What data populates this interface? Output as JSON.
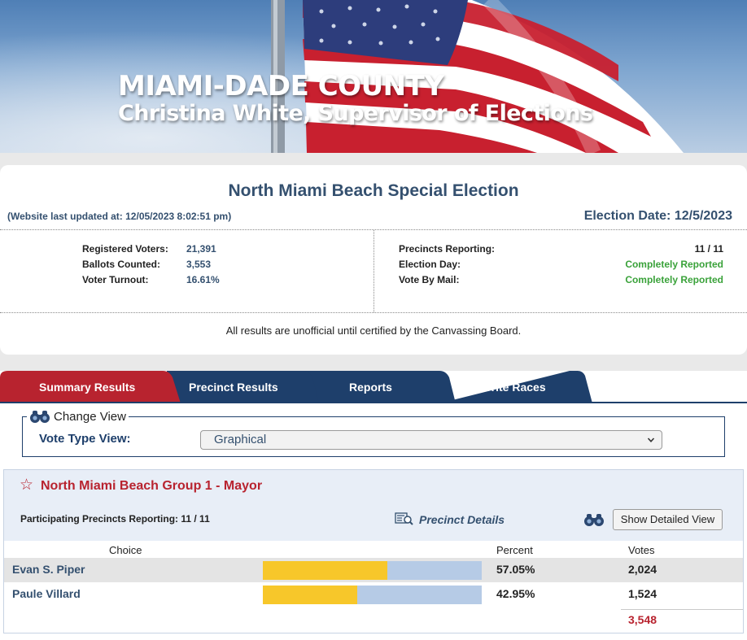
{
  "banner": {
    "county": "MIAMI-DADE COUNTY",
    "supervisor": "Christina White, Supervisor of Elections"
  },
  "election": {
    "title": "North Miami Beach Special Election",
    "last_updated": "(Website last updated at: 12/05/2023 8:02:51 pm)",
    "election_date": "Election Date: 12/5/2023",
    "stats_left": [
      {
        "label": "Registered Voters:",
        "value": "21,391"
      },
      {
        "label": "Ballots Counted:",
        "value": "3,553"
      },
      {
        "label": "Voter Turnout:",
        "value": "16.61%"
      }
    ],
    "stats_right": [
      {
        "label": "Precincts Reporting:",
        "value": "11 / 11"
      },
      {
        "label": "Election Day:",
        "value": "Completely Reported"
      },
      {
        "label": "Vote By Mail:",
        "value": "Completely Reported"
      }
    ],
    "disclaimer": "All results are unofficial until certified by the Canvassing Board."
  },
  "tabs": [
    {
      "label": "Summary Results",
      "active": true
    },
    {
      "label": "Precinct Results",
      "active": false
    },
    {
      "label": "Reports",
      "active": false
    },
    {
      "label": "Favorite Races",
      "active": false
    }
  ],
  "change_view": {
    "legend": "Change View",
    "vote_type_label": "Vote Type View:",
    "selected": "Graphical"
  },
  "race": {
    "title": "North Miami Beach Group 1 - Mayor",
    "precincts": "Participating Precincts Reporting: 11 / 11",
    "precinct_details": "Precinct Details",
    "show_detailed_view": "Show Detailed View",
    "headers": {
      "choice": "Choice",
      "percent": "Percent",
      "votes": "Votes"
    },
    "candidates": [
      {
        "name": "Evan S. Piper",
        "percent": "57.05%",
        "share": 0.5705,
        "votes": "2,024"
      },
      {
        "name": "Paule Villard",
        "percent": "42.95%",
        "share": 0.4295,
        "votes": "1,524"
      }
    ],
    "total_votes": "3,548"
  },
  "colors": {
    "brand_navy": "#1e3f6b",
    "active_tab": "#b8232f",
    "bar_fill": "#f7c72a",
    "bar_bg": "#b6cbe6",
    "reported_green": "#3aa23a"
  },
  "icons": [
    "flag-image",
    "binoculars-icon",
    "star-icon",
    "magnifier-list-icon",
    "chevron-down-icon"
  ]
}
